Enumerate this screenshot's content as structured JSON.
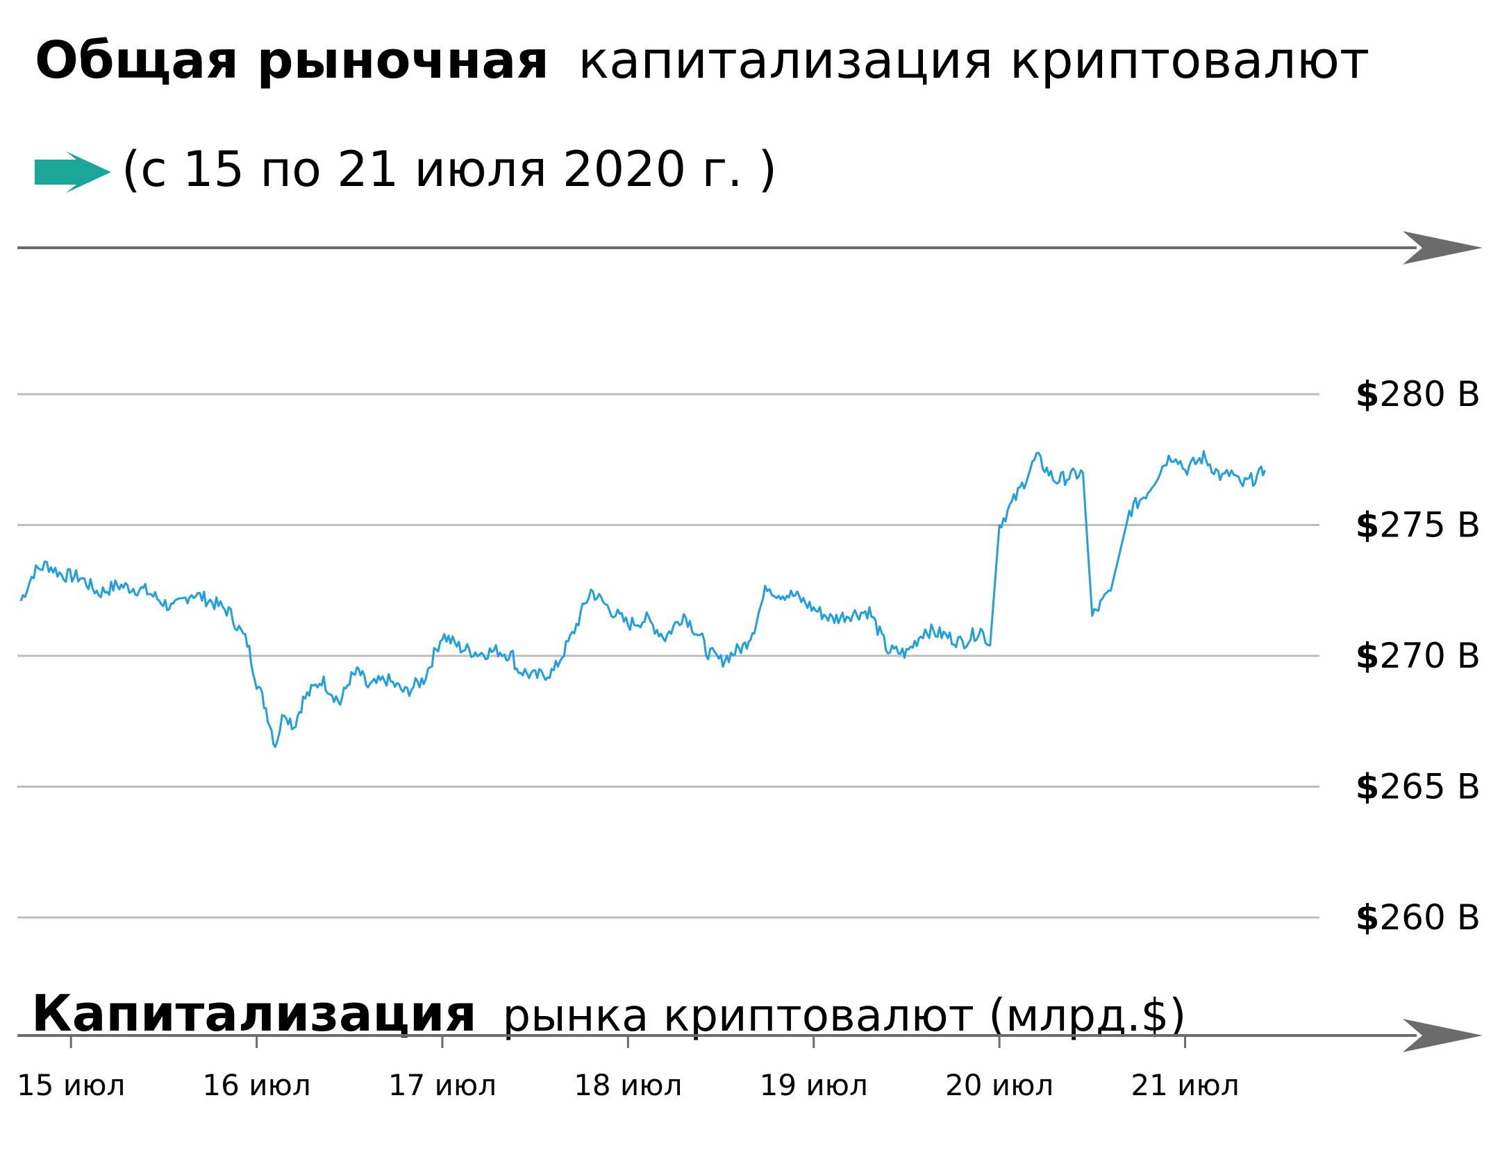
{
  "title": {
    "bold": "Общая рыночная",
    "rest": "капитализация криптовалют",
    "subtitle": "(с 15 по 21 июля 2020 г. )"
  },
  "colors": {
    "line": "#1e9fe0",
    "accent_arrow": "#1aa79a",
    "grid": "#bdbdbd",
    "axis_arrow": "#6b6b6b"
  },
  "chart_data": {
    "type": "line",
    "xlabel_bold": "Капитализация",
    "xlabel_rest": "рынка криптовалют (млрд.$)",
    "ylabel": "",
    "y_tick_labels": [
      {
        "value": 280,
        "prefix": "$",
        "label": "280 B"
      },
      {
        "value": 275,
        "prefix": "$",
        "label": "275 B"
      },
      {
        "value": 270,
        "prefix": "$",
        "label": "270 B"
      },
      {
        "value": 265,
        "prefix": "$",
        "label": "265 B"
      },
      {
        "value": 260,
        "prefix": "$",
        "label": "260 B"
      }
    ],
    "x_tick_labels": [
      "15 июл",
      "16 июл",
      "17 июл",
      "18 июл",
      "19 июл",
      "20 июл",
      "21 июл"
    ],
    "ylim": [
      260,
      280
    ],
    "xlim": [
      -0.27,
      6.66
    ],
    "grid": true,
    "series": [
      {
        "x": [
          -0.27,
          -0.2,
          -0.13,
          -0.05,
          0.05,
          0.15,
          0.25,
          0.4,
          0.55,
          0.65,
          0.75,
          0.85,
          0.95,
          1.0,
          1.05,
          1.1,
          1.15,
          1.2,
          1.25,
          1.35,
          1.45,
          1.5,
          1.55,
          1.6,
          1.7,
          1.8,
          1.9,
          2.0,
          2.1,
          2.2,
          2.3,
          2.38,
          2.4,
          2.5,
          2.6,
          2.7,
          2.8,
          2.9,
          3.0,
          3.1,
          3.2,
          3.3,
          3.4,
          3.42,
          3.5,
          3.63,
          3.68,
          3.75,
          3.8,
          3.9,
          4.0,
          4.1,
          4.2,
          4.3,
          4.4,
          4.5,
          4.6,
          4.7,
          4.8,
          4.9,
          4.95,
          5.0,
          5.1,
          5.2,
          5.3,
          5.45,
          5.5,
          5.6,
          5.7,
          5.8,
          5.9,
          5.95,
          6.0,
          6.1,
          6.2,
          6.25,
          6.3,
          6.4,
          6.43
        ],
        "y": [
          272.1,
          273.2,
          273.5,
          273.1,
          273.0,
          272.4,
          272.7,
          272.5,
          271.8,
          272.4,
          272.1,
          271.7,
          270.5,
          269.0,
          268.0,
          266.6,
          267.9,
          267.3,
          268.3,
          269.1,
          268.2,
          269.1,
          269.4,
          268.8,
          269.1,
          268.6,
          269.1,
          270.8,
          270.3,
          270.1,
          270.2,
          270.0,
          269.5,
          269.2,
          269.4,
          270.8,
          272.5,
          271.8,
          271.2,
          271.4,
          270.7,
          271.6,
          270.6,
          270.2,
          269.8,
          270.4,
          271.1,
          272.7,
          272.4,
          272.3,
          271.8,
          271.4,
          271.6,
          271.7,
          270.2,
          270.1,
          271.0,
          270.8,
          270.5,
          271.0,
          270.4,
          275.0,
          276.2,
          277.6,
          276.7,
          277.0,
          271.5,
          272.5,
          275.5,
          276.3,
          277.5,
          277.7,
          277.1,
          277.6,
          276.8,
          277.0,
          276.5,
          276.9,
          277.1
        ]
      }
    ]
  }
}
